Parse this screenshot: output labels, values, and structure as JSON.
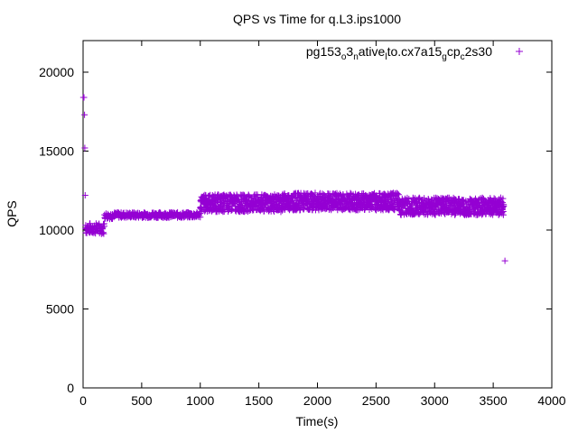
{
  "chart_data": {
    "type": "scatter",
    "title": "QPS vs Time for q.L3.ips1000",
    "xlabel": "Time(s)",
    "ylabel": "QPS",
    "xlim": [
      0,
      4000
    ],
    "ylim": [
      0,
      22000
    ],
    "xticks": [
      0,
      500,
      1000,
      1500,
      2000,
      2500,
      3000,
      3500,
      4000
    ],
    "yticks": [
      0,
      5000,
      10000,
      15000,
      20000
    ],
    "xtick_labels": [
      "0",
      "500",
      "1000",
      "1500",
      "2000",
      "2500",
      "3000",
      "3500",
      "4000"
    ],
    "ytick_labels": [
      "0",
      "5000",
      "10000",
      "15000",
      "20000"
    ],
    "grid": false,
    "legend_position": "top-right",
    "marker": "+",
    "series": [
      {
        "name": "pg153_o3_native_lto.cx7a15_g cp_c2s30",
        "label_parts": [
          {
            "t": "pg153"
          },
          {
            "t": "o",
            "sub": true
          },
          {
            "t": "3"
          },
          {
            "t": "n",
            "sub": true
          },
          {
            "t": "ative"
          },
          {
            "t": "l",
            "sub": true
          },
          {
            "t": "to.cx7a15"
          },
          {
            "t": "g",
            "sub": true
          },
          {
            "t": "cp"
          },
          {
            "t": "c",
            "sub": true
          },
          {
            "t": "2s30"
          }
        ],
        "color": "#9400d3",
        "points": [
          [
            2,
            18400
          ],
          [
            8,
            18400
          ],
          [
            12,
            17300
          ],
          [
            15,
            15200
          ],
          [
            18,
            12200
          ],
          [
            22,
            10300
          ],
          [
            40,
            10100
          ],
          [
            60,
            9900
          ],
          [
            80,
            10200
          ],
          [
            100,
            10000
          ],
          [
            120,
            10300
          ],
          [
            140,
            9800
          ],
          [
            160,
            10100
          ],
          [
            180,
            10400
          ],
          [
            200,
            10900
          ],
          [
            250,
            11000
          ],
          [
            300,
            11100
          ],
          [
            350,
            10900
          ],
          [
            400,
            11000
          ],
          [
            450,
            10800
          ],
          [
            500,
            11000
          ],
          [
            550,
            10900
          ],
          [
            600,
            11100
          ],
          [
            650,
            11000
          ],
          [
            700,
            10900
          ],
          [
            750,
            11100
          ],
          [
            800,
            11000
          ],
          [
            850,
            10900
          ],
          [
            900,
            11100
          ],
          [
            950,
            11000
          ],
          [
            1000,
            11400
          ],
          [
            1050,
            11600
          ],
          [
            1100,
            11800
          ],
          [
            1150,
            11500
          ],
          [
            1200,
            12000
          ],
          [
            1250,
            11700
          ],
          [
            1300,
            11900
          ],
          [
            1350,
            11600
          ],
          [
            1400,
            12100
          ],
          [
            1450,
            11800
          ],
          [
            1500,
            11900
          ],
          [
            1550,
            11700
          ],
          [
            1600,
            12000
          ],
          [
            1650,
            11800
          ],
          [
            1700,
            12200
          ],
          [
            1750,
            11900
          ],
          [
            1800,
            11700
          ],
          [
            1850,
            12000
          ],
          [
            1900,
            11800
          ],
          [
            1950,
            11600
          ],
          [
            2000,
            11900
          ],
          [
            2050,
            11700
          ],
          [
            2100,
            12000
          ],
          [
            2150,
            11800
          ],
          [
            2200,
            12200
          ],
          [
            2250,
            11700
          ],
          [
            2300,
            11900
          ],
          [
            2350,
            11600
          ],
          [
            2400,
            12000
          ],
          [
            2450,
            11800
          ],
          [
            2500,
            11900
          ],
          [
            2550,
            11600
          ],
          [
            2600,
            11800
          ],
          [
            2650,
            11500
          ],
          [
            2700,
            11900
          ],
          [
            2750,
            11700
          ],
          [
            2800,
            11400
          ],
          [
            2850,
            11800
          ],
          [
            2900,
            11600
          ],
          [
            2950,
            11900
          ],
          [
            3000,
            11500
          ],
          [
            3050,
            11700
          ],
          [
            3100,
            11300
          ],
          [
            3150,
            11600
          ],
          [
            3200,
            11400
          ],
          [
            3250,
            11700
          ],
          [
            3300,
            11200
          ],
          [
            3350,
            11500
          ],
          [
            3400,
            11300
          ],
          [
            3450,
            11600
          ],
          [
            3500,
            11400
          ],
          [
            3550,
            11200
          ],
          [
            3580,
            11500
          ],
          [
            3600,
            8050
          ]
        ],
        "band": {
          "segments": [
            {
              "x": [
                20,
                180
              ],
              "center": 10100,
              "spread": 700
            },
            {
              "x": [
                180,
                260
              ],
              "center": 10900,
              "spread": 400
            },
            {
              "x": [
                260,
                1000
              ],
              "center": 10950,
              "spread": 350
            },
            {
              "x": [
                1000,
                1700
              ],
              "center": 11700,
              "spread": 1100
            },
            {
              "x": [
                1700,
                2700
              ],
              "center": 11800,
              "spread": 1100
            },
            {
              "x": [
                2700,
                3590
              ],
              "center": 11500,
              "spread": 1100
            }
          ]
        }
      }
    ]
  }
}
